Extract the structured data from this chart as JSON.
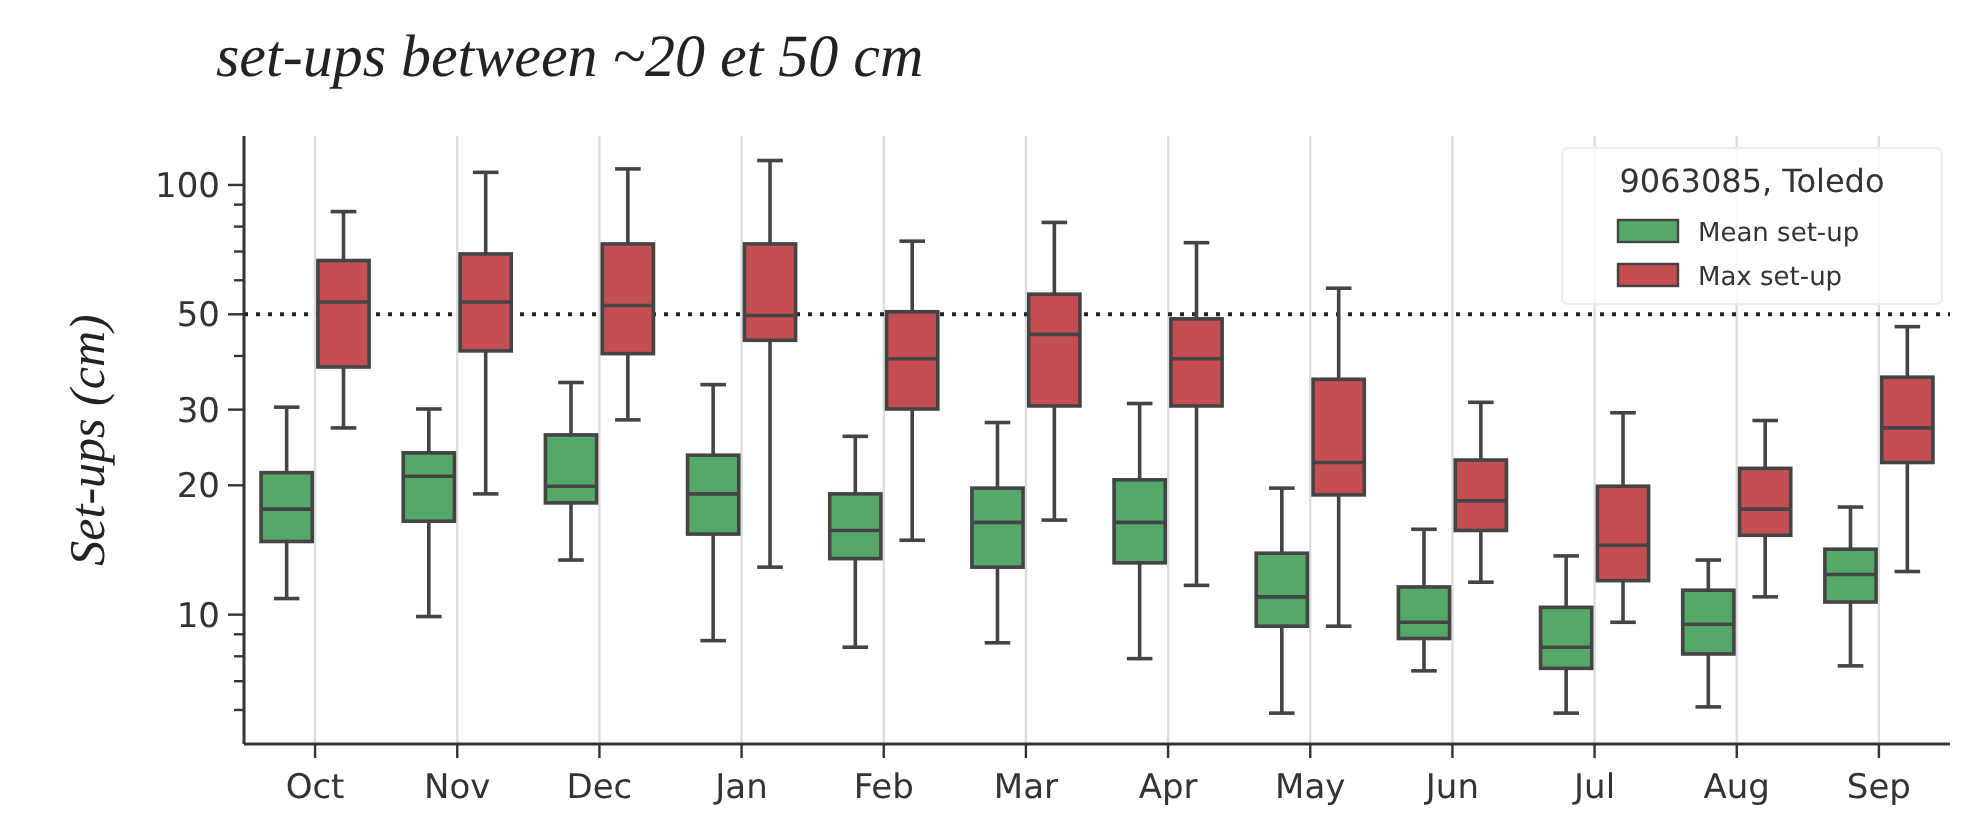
{
  "chart_data": {
    "type": "box",
    "title": "set-ups between ~20 et 50 cm",
    "ylabel": "Set-ups (cm)",
    "legend_title": "9063085, Toledo",
    "categories": [
      "Oct",
      "Nov",
      "Dec",
      "Jan",
      "Feb",
      "Mar",
      "Apr",
      "May",
      "Jun",
      "Jul",
      "Aug",
      "Sep"
    ],
    "log": true,
    "ylim": [
      5,
      130
    ],
    "yticks": [
      {
        "value": 6,
        "label": null
      },
      {
        "value": 7,
        "label": null
      },
      {
        "value": 8,
        "label": null
      },
      {
        "value": 9,
        "label": null
      },
      10,
      20,
      30,
      {
        "value": 40,
        "label": null
      },
      50,
      {
        "value": 60,
        "label": null
      },
      {
        "value": 70,
        "label": null
      },
      {
        "value": 80,
        "label": null
      },
      {
        "value": 90,
        "label": null
      },
      100
    ],
    "grid": "x",
    "legend": "top right",
    "ref_lines": [
      {
        "axis": "y",
        "value": 50,
        "line_style": "dotted",
        "color": "#222222"
      }
    ],
    "series": [
      {
        "name": "Mean set-up",
        "color": "#55a868",
        "boxes": [
          {
            "low": 10.9,
            "q1": 14.8,
            "median": 17.6,
            "q3": 21.4,
            "high": 30.4
          },
          {
            "low": 9.9,
            "q1": 16.5,
            "median": 21.0,
            "q3": 23.8,
            "high": 30.1
          },
          {
            "low": 13.4,
            "q1": 18.2,
            "median": 19.9,
            "q3": 26.2,
            "high": 34.7
          },
          {
            "low": 8.7,
            "q1": 15.4,
            "median": 19.1,
            "q3": 23.5,
            "high": 34.3
          },
          {
            "low": 8.4,
            "q1": 13.5,
            "median": 15.7,
            "q3": 19.1,
            "high": 26.0
          },
          {
            "low": 8.6,
            "q1": 12.9,
            "median": 16.4,
            "q3": 19.7,
            "high": 28.0
          },
          {
            "low": 7.9,
            "q1": 13.2,
            "median": 16.4,
            "q3": 20.6,
            "high": 31.0
          },
          {
            "low": 5.9,
            "q1": 9.4,
            "median": 11.0,
            "q3": 13.9,
            "high": 19.7
          },
          {
            "low": 7.4,
            "q1": 8.8,
            "median": 9.6,
            "q3": 11.6,
            "high": 15.8
          },
          {
            "low": 5.9,
            "q1": 7.5,
            "median": 8.4,
            "q3": 10.4,
            "high": 13.7
          },
          {
            "low": 6.1,
            "q1": 8.1,
            "median": 9.5,
            "q3": 11.4,
            "high": 13.4
          },
          {
            "low": 7.6,
            "q1": 10.7,
            "median": 12.4,
            "q3": 14.2,
            "high": 17.8
          }
        ]
      },
      {
        "name": "Max set-up",
        "color": "#c44e52",
        "boxes": [
          {
            "low": 27.2,
            "q1": 37.7,
            "median": 53.4,
            "q3": 66.7,
            "high": 86.7
          },
          {
            "low": 19.1,
            "q1": 41.1,
            "median": 53.4,
            "q3": 69.1,
            "high": 107
          },
          {
            "low": 28.4,
            "q1": 40.5,
            "median": 52.4,
            "q3": 72.9,
            "high": 109
          },
          {
            "low": 12.9,
            "q1": 43.5,
            "median": 49.7,
            "q3": 72.9,
            "high": 114
          },
          {
            "low": 14.9,
            "q1": 30.1,
            "median": 39.4,
            "q3": 50.7,
            "high": 74
          },
          {
            "low": 16.6,
            "q1": 30.6,
            "median": 44.9,
            "q3": 55.7,
            "high": 81.8
          },
          {
            "low": 11.7,
            "q1": 30.6,
            "median": 39.4,
            "q3": 48.8,
            "high": 73.4
          },
          {
            "low": 9.4,
            "q1": 19.0,
            "median": 22.6,
            "q3": 35.3,
            "high": 57.5
          },
          {
            "low": 11.9,
            "q1": 15.7,
            "median": 18.4,
            "q3": 22.9,
            "high": 31.2
          },
          {
            "low": 9.6,
            "q1": 12.0,
            "median": 14.5,
            "q3": 19.9,
            "high": 29.5
          },
          {
            "low": 11.0,
            "q1": 15.3,
            "median": 17.6,
            "q3": 21.9,
            "high": 28.3
          },
          {
            "low": 12.6,
            "q1": 22.6,
            "median": 27.2,
            "q3": 35.7,
            "high": 46.8
          }
        ]
      }
    ]
  }
}
